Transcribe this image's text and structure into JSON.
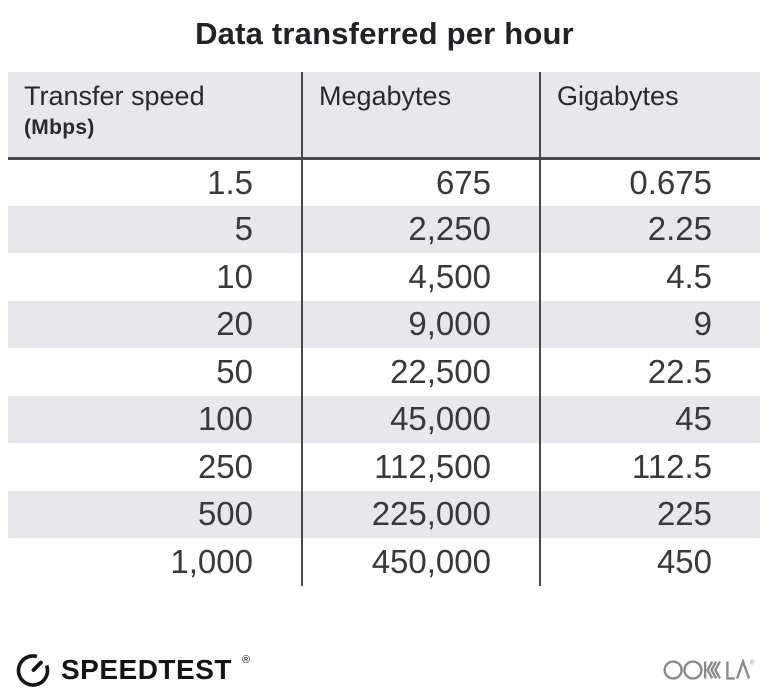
{
  "title": "Data transferred per hour",
  "table": {
    "columns": [
      {
        "label": "Transfer speed",
        "sublabel": "(Mbps)"
      },
      {
        "label": "Megabytes"
      },
      {
        "label": "Gigabytes"
      }
    ],
    "rows": [
      [
        "1.5",
        "675",
        "0.675"
      ],
      [
        "5",
        "2,250",
        "2.25"
      ],
      [
        "10",
        "4,500",
        "4.5"
      ],
      [
        "20",
        "9,000",
        "9"
      ],
      [
        "50",
        "22,500",
        "22.5"
      ],
      [
        "100",
        "45,000",
        "45"
      ],
      [
        "250",
        "112,500",
        "112.5"
      ],
      [
        "500",
        "225,000",
        "225"
      ],
      [
        "1,000",
        "450,000",
        "450"
      ]
    ]
  },
  "chart_data": {
    "type": "table",
    "title": "Data transferred per hour",
    "columns": [
      "Transfer speed (Mbps)",
      "Megabytes",
      "Gigabytes"
    ],
    "rows": [
      [
        1.5,
        675,
        0.675
      ],
      [
        5,
        2250,
        2.25
      ],
      [
        10,
        4500,
        4.5
      ],
      [
        20,
        9000,
        9
      ],
      [
        50,
        22500,
        22.5
      ],
      [
        100,
        45000,
        45
      ],
      [
        250,
        112500,
        112.5
      ],
      [
        500,
        225000,
        225
      ],
      [
        1000,
        450000,
        450
      ]
    ],
    "layout": {
      "zebra_striping": true,
      "header_background": "#e8e8ec",
      "first_row_shade": "white"
    }
  },
  "footer": {
    "speedtest_label": "SPEEDTEST",
    "speedtest_reg": "®",
    "ookla_label": "OOKLA",
    "ookla_reg": "®"
  },
  "colors": {
    "stripe": "#e8e8ec",
    "line": "#4a484d",
    "title-ink": "#232126",
    "header-ink": "#2b292e",
    "number-ink": "#3a383d",
    "speedtest-ink": "#141414",
    "ookla-gray": "#8b8b8b"
  }
}
